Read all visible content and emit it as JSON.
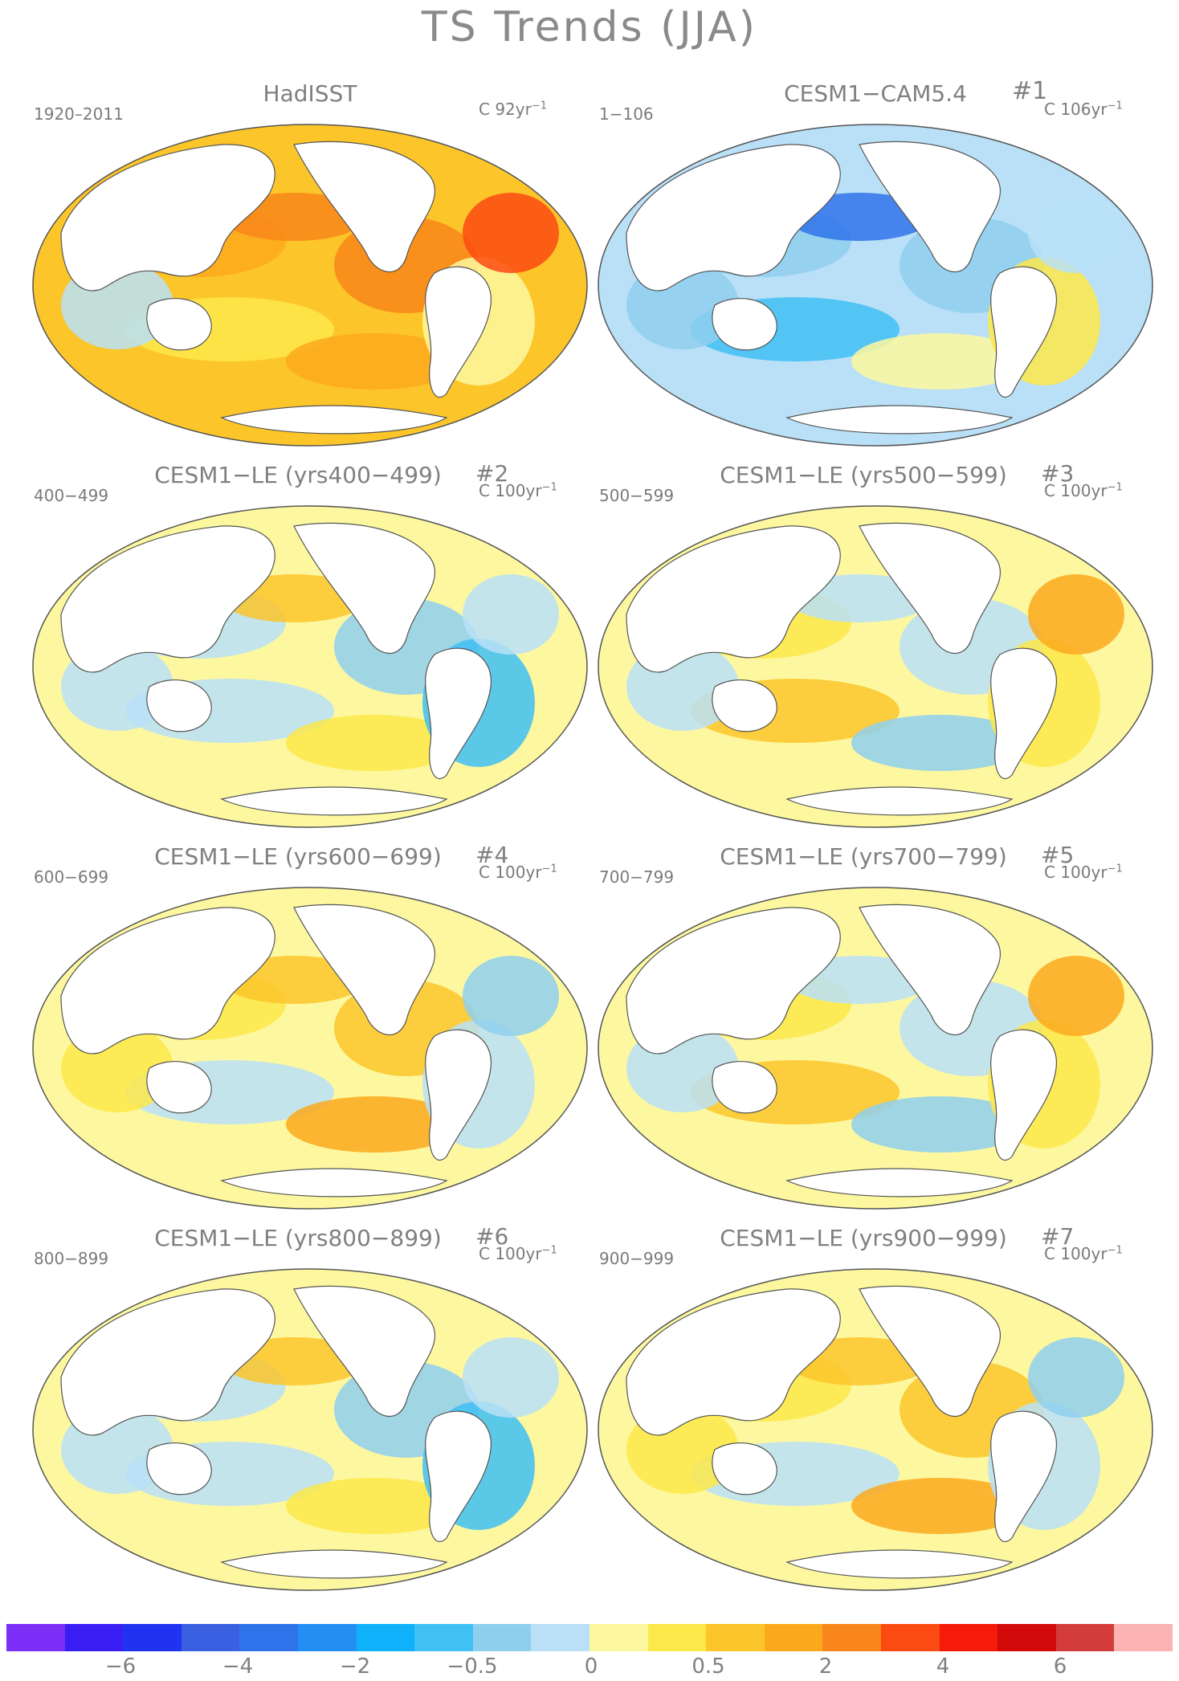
{
  "title": "TS Trends (JJA)",
  "panels": [
    {
      "title": "HadISST",
      "number": "",
      "range": "1920–2011",
      "units": "C 92yr",
      "units_exp": "−1",
      "palette": "warm_strong"
    },
    {
      "title": "CESM1−CAM5.4",
      "number": "#1",
      "range": "1−106",
      "units": "C 106yr",
      "units_exp": "−1",
      "palette": "cool"
    },
    {
      "title": "CESM1−LE (yrs400−499)",
      "number": "#2",
      "range": "400−499",
      "units": "C 100yr",
      "units_exp": "−1",
      "palette": "mixed_cool"
    },
    {
      "title": "CESM1−LE (yrs500−599)",
      "number": "#3",
      "range": "500−599",
      "units": "C 100yr",
      "units_exp": "−1",
      "palette": "mixed"
    },
    {
      "title": "CESM1−LE (yrs600−699)",
      "number": "#4",
      "range": "600−699",
      "units": "C 100yr",
      "units_exp": "−1",
      "palette": "mixed_warm"
    },
    {
      "title": "CESM1−LE (yrs700−799)",
      "number": "#5",
      "range": "700−799",
      "units": "C 100yr",
      "units_exp": "−1",
      "palette": "mixed"
    },
    {
      "title": "CESM1−LE (yrs800−899)",
      "number": "#6",
      "range": "800−899",
      "units": "C 100yr",
      "units_exp": "−1",
      "palette": "mixed_cool"
    },
    {
      "title": "CESM1−LE (yrs900−999)",
      "number": "#7",
      "range": "900−999",
      "units": "C 100yr",
      "units_exp": "−1",
      "palette": "mixed_warm"
    }
  ],
  "colorbar": {
    "colors": [
      "#7b2ff7",
      "#3a1ff5",
      "#1f33f0",
      "#3a5fe0",
      "#2f73ea",
      "#238ff5",
      "#0fb1fa",
      "#40c0f5",
      "#8fcfee",
      "#b9e0f7",
      "#fdf8a0",
      "#fde84a",
      "#fcc52a",
      "#fba91c",
      "#f9861a",
      "#fb4a12",
      "#f51a0a",
      "#d20a0a",
      "#d43c3c",
      "#fbb3b3"
    ],
    "ticks": [
      "−6",
      "−4",
      "−2",
      "−0.5",
      "0",
      "0.5",
      "2",
      "4",
      "6"
    ]
  }
}
